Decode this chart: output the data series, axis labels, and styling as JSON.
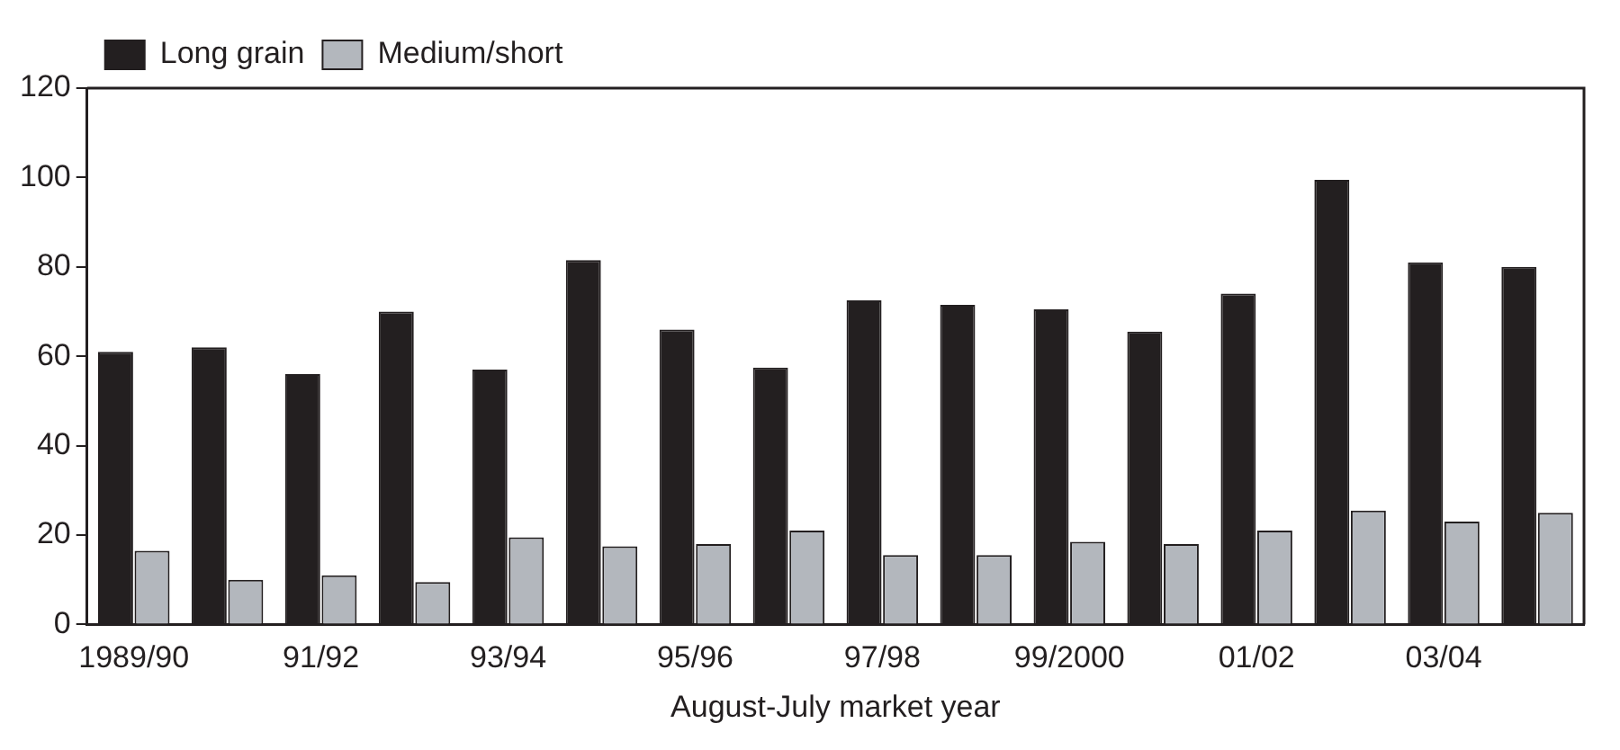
{
  "chart_data": {
    "type": "bar",
    "xlabel": "August-July market year",
    "categories": [
      "1989/90",
      null,
      "91/92",
      null,
      "93/94",
      null,
      "95/96",
      null,
      "97/98",
      null,
      "99/2000",
      null,
      "01/02",
      null,
      "03/04",
      null
    ],
    "series": [
      {
        "name": "Long grain",
        "color": "#231f20",
        "values": [
          61,
          62,
          56,
          70,
          57,
          81.5,
          66,
          57.5,
          72.5,
          71.5,
          70.5,
          65.5,
          74,
          99.5,
          81,
          80
        ]
      },
      {
        "name": "Medium/short",
        "color": "#b3b7bd",
        "values": [
          16.5,
          10,
          11,
          9.5,
          19.5,
          17.5,
          18,
          21,
          15.5,
          15.5,
          18.5,
          18,
          21,
          25.5,
          23,
          25
        ]
      }
    ],
    "ylim": [
      0,
      120
    ],
    "yticks": [
      0,
      20,
      40,
      60,
      80,
      100,
      120
    ],
    "grid": false,
    "legend": "top left"
  }
}
